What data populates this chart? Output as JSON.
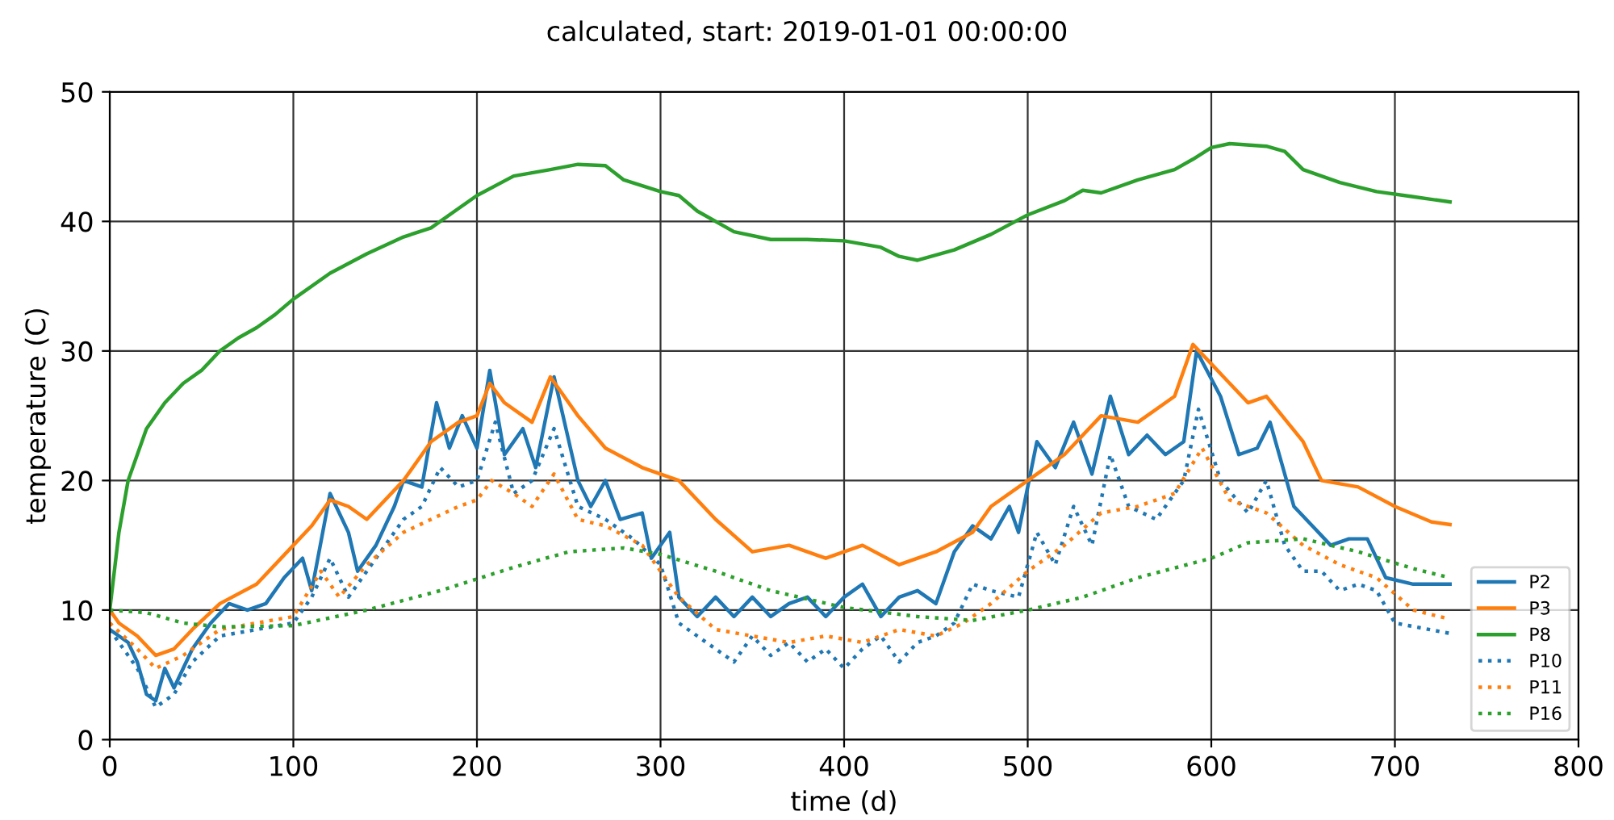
{
  "chart_data": {
    "type": "line",
    "title": "calculated, start: 2019-01-01 00:00:00",
    "xlabel": "time (d)",
    "ylabel": "temperature (C)",
    "xlim": [
      0,
      800
    ],
    "xticks": [
      0,
      100,
      200,
      300,
      400,
      500,
      600,
      700,
      800
    ],
    "ylim": [
      0,
      50
    ],
    "yticks": [
      0,
      10,
      20,
      30,
      40,
      50
    ],
    "grid": true,
    "legend": "bottom right",
    "series": [
      {
        "name": "P2",
        "color": "#1f77b4",
        "line_style": "solid",
        "x": [
          0,
          10,
          15,
          20,
          25,
          30,
          35,
          45,
          55,
          65,
          75,
          85,
          95,
          105,
          110,
          120,
          130,
          135,
          145,
          155,
          160,
          170,
          178,
          185,
          192,
          200,
          207,
          215,
          225,
          232,
          242,
          255,
          262,
          270,
          278,
          290,
          295,
          305,
          310,
          320,
          330,
          340,
          350,
          360,
          370,
          380,
          390,
          400,
          410,
          420,
          430,
          440,
          450,
          460,
          470,
          480,
          490,
          495,
          505,
          515,
          525,
          535,
          545,
          555,
          565,
          575,
          585,
          592,
          605,
          615,
          625,
          632,
          645,
          655,
          665,
          675,
          685,
          695,
          710,
          730
        ],
        "values": [
          8.5,
          7.5,
          6,
          3.5,
          3,
          5.5,
          4,
          7,
          9,
          10.5,
          10,
          10.5,
          12.5,
          14,
          11.5,
          19,
          16,
          13,
          15,
          18,
          20,
          19.5,
          26,
          22.5,
          25,
          22.5,
          28.5,
          22,
          24,
          21,
          28,
          20,
          18,
          20,
          17,
          17.5,
          14,
          16,
          11,
          9.5,
          11,
          9.5,
          11,
          9.5,
          10.5,
          11,
          9.5,
          11,
          12,
          9.5,
          11,
          11.5,
          10.5,
          14.5,
          16.5,
          15.5,
          18,
          16,
          23,
          21,
          24.5,
          20.5,
          26.5,
          22,
          23.5,
          22,
          23,
          30,
          26.5,
          22,
          22.5,
          24.5,
          18,
          16.5,
          15,
          15.5,
          15.5,
          12.5,
          12,
          12
        ]
      },
      {
        "name": "P3",
        "color": "#ff7f0e",
        "line_style": "solid",
        "x": [
          0,
          5,
          15,
          25,
          35,
          45,
          60,
          80,
          100,
          110,
          120,
          130,
          140,
          160,
          175,
          190,
          200,
          207,
          215,
          230,
          240,
          255,
          270,
          290,
          310,
          330,
          350,
          370,
          390,
          410,
          430,
          450,
          470,
          480,
          500,
          520,
          540,
          560,
          580,
          590,
          600,
          620,
          630,
          650,
          660,
          680,
          700,
          720,
          730
        ],
        "values": [
          10,
          9,
          8,
          6.5,
          7,
          8.5,
          10.5,
          12,
          15,
          16.5,
          18.5,
          18,
          17,
          20,
          23,
          24.5,
          25,
          27.5,
          26,
          24.5,
          28,
          25,
          22.5,
          21,
          20,
          17,
          14.5,
          15,
          14,
          15,
          13.5,
          14.5,
          16,
          18,
          20,
          22,
          25,
          24.5,
          26.5,
          30.5,
          29,
          26,
          26.5,
          23,
          20,
          19.5,
          18,
          16.8,
          16.6
        ]
      },
      {
        "name": "P8",
        "color": "#2ca02c",
        "line_style": "solid",
        "x": [
          0,
          5,
          10,
          20,
          30,
          40,
          50,
          60,
          70,
          80,
          90,
          100,
          120,
          140,
          160,
          175,
          190,
          200,
          220,
          240,
          255,
          270,
          280,
          300,
          310,
          320,
          340,
          360,
          380,
          400,
          420,
          430,
          440,
          460,
          480,
          500,
          520,
          530,
          540,
          560,
          580,
          590,
          600,
          610,
          630,
          640,
          650,
          670,
          690,
          710,
          730
        ],
        "values": [
          10,
          16,
          20,
          24,
          26,
          27.5,
          28.5,
          30,
          31,
          31.8,
          32.8,
          34,
          36,
          37.5,
          38.8,
          39.5,
          41,
          42,
          43.5,
          44,
          44.4,
          44.3,
          43.2,
          42.3,
          42,
          40.8,
          39.2,
          38.6,
          38.6,
          38.5,
          38,
          37.3,
          37,
          37.8,
          39,
          40.5,
          41.6,
          42.4,
          42.2,
          43.2,
          44,
          44.8,
          45.7,
          46,
          45.8,
          45.4,
          44,
          43,
          42.3,
          41.9,
          41.5
        ]
      },
      {
        "name": "P10",
        "color": "#1f77b4",
        "line_style": "dotted",
        "x": [
          0,
          15,
          25,
          35,
          45,
          60,
          80,
          100,
          110,
          120,
          130,
          145,
          160,
          170,
          180,
          190,
          200,
          210,
          220,
          230,
          242,
          255,
          270,
          285,
          300,
          310,
          320,
          330,
          340,
          350,
          360,
          370,
          380,
          390,
          400,
          410,
          420,
          430,
          440,
          450,
          460,
          470,
          480,
          495,
          505,
          515,
          525,
          535,
          545,
          555,
          570,
          585,
          593,
          605,
          620,
          630,
          640,
          650,
          660,
          670,
          680,
          690,
          700,
          730
        ],
        "values": [
          8.5,
          5.5,
          2.5,
          3.5,
          6,
          8,
          8.5,
          9,
          11,
          14,
          11,
          14,
          17,
          18,
          21,
          19.5,
          20,
          24.5,
          19,
          20,
          24,
          18,
          17,
          15.5,
          13.5,
          9,
          8,
          7,
          6,
          8,
          6.5,
          7.5,
          6,
          7,
          5.5,
          7,
          8,
          6,
          7.5,
          8,
          9,
          12,
          11.5,
          11,
          16,
          13.5,
          18,
          15,
          22,
          18,
          17,
          20,
          25.5,
          20,
          17.5,
          20,
          15,
          13,
          13,
          11.5,
          12,
          11.5,
          9,
          8.2
        ]
      },
      {
        "name": "P11",
        "color": "#ff7f0e",
        "line_style": "dotted",
        "x": [
          0,
          15,
          25,
          40,
          60,
          80,
          100,
          115,
          125,
          140,
          160,
          175,
          190,
          200,
          208,
          220,
          230,
          242,
          255,
          270,
          290,
          310,
          330,
          350,
          370,
          390,
          410,
          430,
          450,
          465,
          480,
          500,
          520,
          540,
          560,
          580,
          595,
          610,
          630,
          650,
          670,
          690,
          710,
          730
        ],
        "values": [
          9,
          7,
          5.5,
          6.5,
          8.5,
          9,
          9.5,
          13,
          11,
          13.5,
          16,
          17,
          18,
          18.5,
          20,
          19,
          18,
          20.5,
          17,
          16.5,
          15,
          11,
          8.5,
          8,
          7.5,
          8,
          7.5,
          8.5,
          8,
          9,
          10.5,
          13,
          15,
          17.5,
          18,
          19,
          22.5,
          18.5,
          17.5,
          15,
          13.5,
          12.5,
          10,
          9.3
        ]
      },
      {
        "name": "P16",
        "color": "#2ca02c",
        "line_style": "dotted",
        "x": [
          0,
          20,
          40,
          60,
          100,
          140,
          180,
          220,
          250,
          280,
          300,
          330,
          360,
          400,
          440,
          470,
          500,
          530,
          560,
          600,
          620,
          650,
          680,
          710,
          730
        ],
        "values": [
          10,
          9.8,
          9,
          8.7,
          8.8,
          10,
          11.5,
          13.3,
          14.5,
          14.8,
          14.3,
          13,
          11.5,
          10.2,
          9.5,
          9.2,
          10,
          11,
          12.5,
          14,
          15.2,
          15.5,
          14.5,
          13.2,
          12.5
        ]
      }
    ]
  }
}
